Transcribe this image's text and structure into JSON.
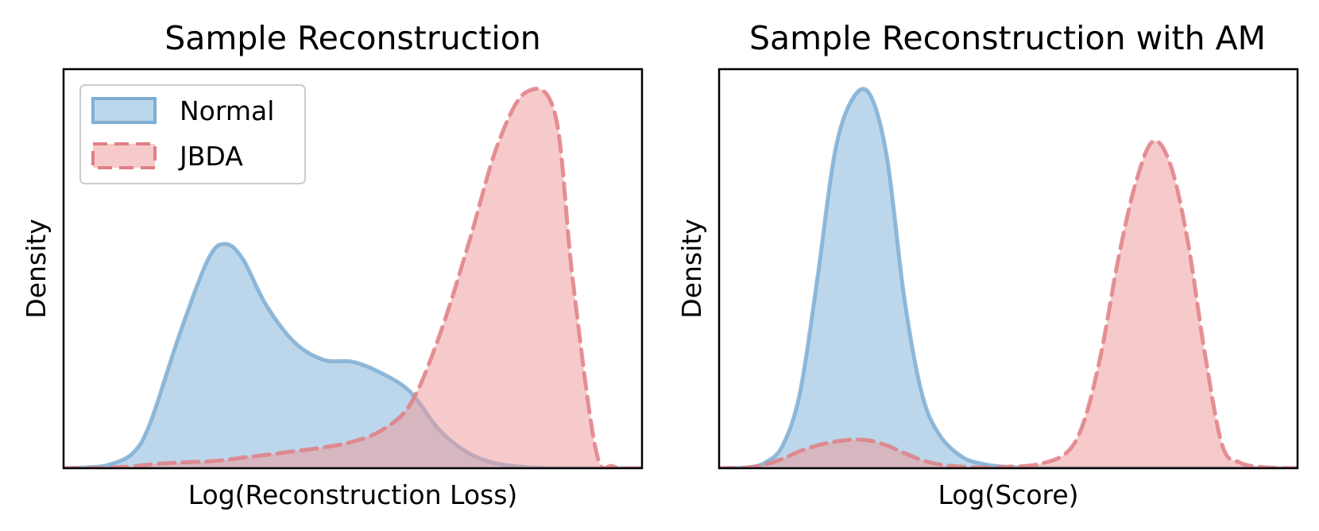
{
  "colors": {
    "normal": "#7fb2d9",
    "normal_stroke": "#7faed4",
    "jbda": "#ee9a9a",
    "jbda_stroke": "#e07f85"
  },
  "legend": {
    "location": "upper-left of left panel",
    "entries": [
      "Normal",
      "JBDA"
    ]
  },
  "chart_data": [
    {
      "type": "area",
      "title": "Sample Reconstruction",
      "xlabel": "Log(Reconstruction Loss)",
      "ylabel": "Density",
      "xticks": "hidden",
      "yticks": "hidden",
      "xlim": [
        0,
        100
      ],
      "ylim": [
        0,
        1.05
      ],
      "x": [
        0,
        5,
        8,
        12,
        15,
        20,
        25,
        28,
        31,
        35,
        40,
        45,
        50,
        55,
        60,
        65,
        70,
        75,
        80,
        85,
        88,
        92,
        95,
        100
      ],
      "series": [
        {
          "name": "Normal",
          "style": "solid",
          "values": [
            0,
            0.003,
            0.01,
            0.04,
            0.12,
            0.35,
            0.55,
            0.59,
            0.55,
            0.43,
            0.33,
            0.285,
            0.28,
            0.25,
            0.2,
            0.1,
            0.04,
            0.012,
            0.003,
            0,
            0,
            0,
            0,
            0
          ]
        },
        {
          "name": "JBDA",
          "style": "dashed",
          "values": [
            0,
            0,
            0.002,
            0.005,
            0.01,
            0.015,
            0.018,
            0.022,
            0.028,
            0.035,
            0.045,
            0.055,
            0.07,
            0.1,
            0.17,
            0.35,
            0.59,
            0.85,
            0.99,
            0.93,
            0.5,
            0.05,
            0.005,
            0
          ]
        }
      ]
    },
    {
      "type": "area",
      "title": "Sample Reconstruction with AM",
      "xlabel": "Log(Score)",
      "ylabel": "Density",
      "xticks": "hidden",
      "yticks": "hidden",
      "xlim": [
        0,
        100
      ],
      "ylim": [
        0,
        1.05
      ],
      "x": [
        0,
        5,
        8,
        11,
        14,
        17,
        20,
        23,
        26,
        29,
        32,
        35,
        38,
        42,
        46,
        50,
        55,
        60,
        63,
        66,
        69,
        72,
        75,
        78,
        81,
        84,
        87,
        90,
        94,
        100
      ],
      "series": [
        {
          "name": "Normal",
          "style": "solid",
          "values": [
            0,
            0.002,
            0.015,
            0.06,
            0.2,
            0.5,
            0.83,
            0.97,
            0.985,
            0.82,
            0.45,
            0.2,
            0.09,
            0.03,
            0.01,
            0.003,
            0.001,
            0,
            0,
            0,
            0,
            0,
            0,
            0,
            0,
            0,
            0,
            0,
            0,
            0
          ]
        },
        {
          "name": "JBDA",
          "style": "dashed",
          "values": [
            0,
            0.002,
            0.01,
            0.025,
            0.045,
            0.06,
            0.07,
            0.075,
            0.073,
            0.06,
            0.04,
            0.022,
            0.01,
            0.004,
            0.002,
            0.004,
            0.01,
            0.04,
            0.12,
            0.3,
            0.55,
            0.75,
            0.86,
            0.8,
            0.6,
            0.3,
            0.06,
            0.015,
            0.003,
            0
          ]
        }
      ]
    }
  ]
}
